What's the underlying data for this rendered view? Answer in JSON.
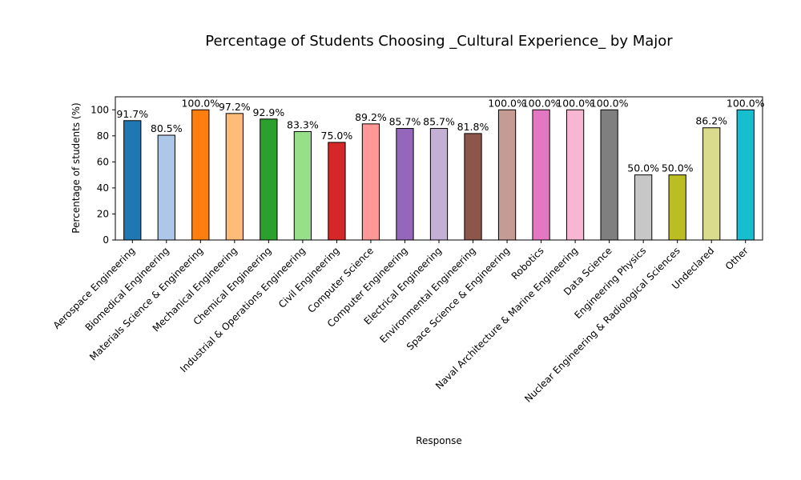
{
  "chart_data": {
    "type": "bar",
    "title": "Percentage of Students Choosing _Cultural Experience_ by Major",
    "xlabel": "Response",
    "ylabel": "Percentage of students (%)",
    "ylim": [
      0,
      110
    ],
    "yticks": [
      0,
      20,
      40,
      60,
      80,
      100
    ],
    "grid": false,
    "legend": "none",
    "categories": [
      "Aerospace Engineering",
      "Biomedical Engineering",
      "Materials Science & Engineering",
      "Mechanical Engineering",
      "Chemical Engineering",
      "Industrial & Operations Engineering",
      "Civil Engineering",
      "Computer Science",
      "Computer Engineering",
      "Electrical Engineering",
      "Environmental Engineering",
      "Space Science & Engineering",
      "Robotics",
      "Naval Architecture & Marine Engineering",
      "Data Science",
      "Engineering Physics",
      "Nuclear Engineering & Radiological Sciences",
      "Undeclared",
      "Other"
    ],
    "values": [
      91.7,
      80.5,
      100.0,
      97.2,
      92.9,
      83.3,
      75.0,
      89.2,
      85.7,
      85.7,
      81.8,
      100.0,
      100.0,
      100.0,
      100.0,
      50.0,
      50.0,
      86.2,
      100.0
    ],
    "data_labels": [
      "91.7%",
      "80.5%",
      "100.0%",
      "97.2%",
      "92.9%",
      "83.3%",
      "75.0%",
      "89.2%",
      "85.7%",
      "85.7%",
      "81.8%",
      "100.0%",
      "100.0%",
      "100.0%",
      "100.0%",
      "50.0%",
      "50.0%",
      "86.2%",
      "100.0%"
    ],
    "colors": [
      "#1f77b4",
      "#aec7e8",
      "#ff7f0e",
      "#ffbb78",
      "#2ca02c",
      "#98df8a",
      "#d62728",
      "#ff9896",
      "#9467bd",
      "#c5b0d5",
      "#8c564b",
      "#c49c94",
      "#e377c2",
      "#f7b6d2",
      "#7f7f7f",
      "#c7c7c7",
      "#bcbd22",
      "#dbdb8d",
      "#17becf"
    ],
    "bar_edge_color": "#000000"
  }
}
